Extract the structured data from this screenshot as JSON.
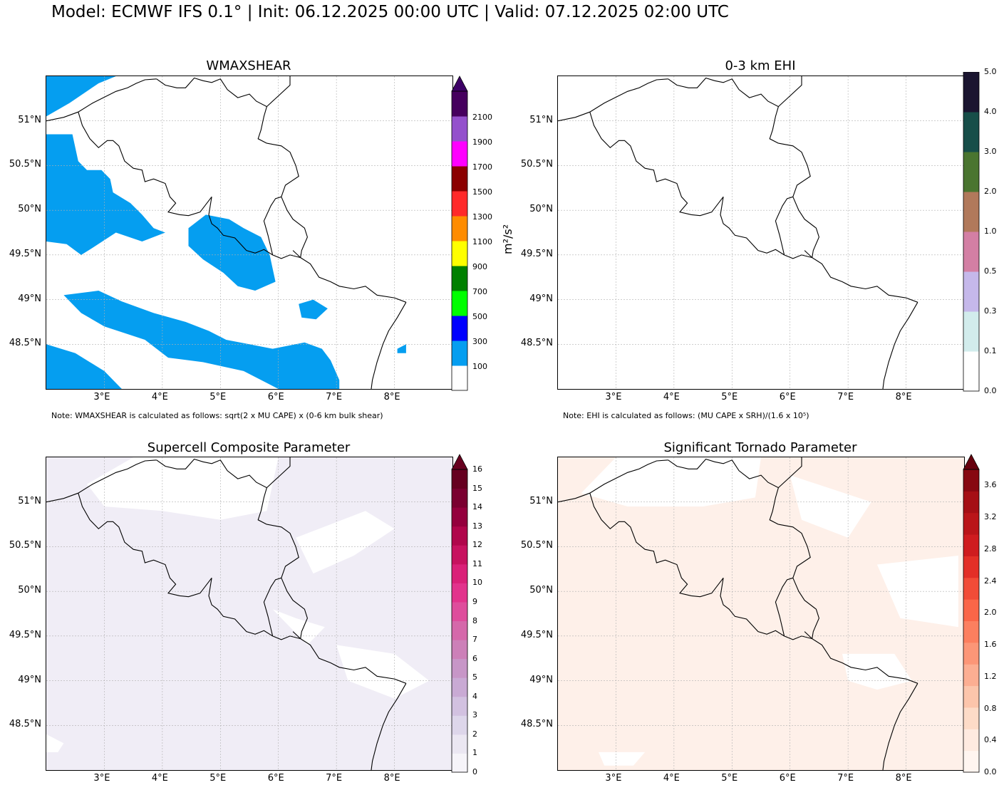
{
  "suptitle": "Model: ECMWF IFS 0.1° | Init: 06.12.2025 00:00 UTC | Valid: 07.12.2025 02:00 UTC",
  "map_extent": {
    "lon": [
      2.0,
      9.0
    ],
    "lat": [
      48.0,
      51.5
    ]
  },
  "lon_ticks": [
    "3°E",
    "4°E",
    "5°E",
    "6°E",
    "7°E",
    "8°E"
  ],
  "lat_ticks": [
    "51°N",
    "50.5°N",
    "50°N",
    "49.5°N",
    "49°N",
    "48.5°N"
  ],
  "colors": {
    "gridline": "#b0b0b0",
    "coastline": "#000000"
  },
  "panels": [
    {
      "title": "WMAXSHEAR",
      "note": "Note: WMAXSHEAR is calculated as follows: sqrt(2 x MU CAPE) x (0-6 km bulk shear)",
      "colorbar": {
        "label": "m²/s²",
        "extend": "max",
        "tick_labels": [
          "100",
          "300",
          "500",
          "700",
          "900",
          "1100",
          "1300",
          "1500",
          "1700",
          "1900",
          "2100"
        ],
        "colors": [
          "#ffffff",
          "#059ef0",
          "#0000ff",
          "#00ff00",
          "#008000",
          "#ffff00",
          "#ff8c00",
          "#ff2a2a",
          "#8b0000",
          "#ff00ff",
          "#9450cc",
          "#46005e",
          "#3d0066"
        ]
      },
      "field": {
        "fill": "#059ef0"
      }
    },
    {
      "title": "0-3 km EHI",
      "note": "Note: EHI is calculated as follows: (MU CAPE x SRH)/(1.6 x 10⁵)",
      "colorbar": {
        "label": "",
        "extend": "none",
        "tick_labels": [
          "0.0",
          "0.1",
          "0.3",
          "0.5",
          "1.0",
          "2.0",
          "3.0",
          "4.0",
          "5.0"
        ],
        "colors": [
          "#ffffff",
          "#d2ecec",
          "#c5b8ea",
          "#d37fa4",
          "#b1795b",
          "#4a7530",
          "#174e49",
          "#1b1530"
        ]
      },
      "field": {
        "fill": "none"
      }
    },
    {
      "title": "Supercell Composite Parameter",
      "note": "",
      "colorbar": {
        "label": "",
        "extend": "max",
        "tick_labels": [
          "0",
          "1",
          "2",
          "3",
          "4",
          "5",
          "6",
          "7",
          "8",
          "9",
          "10",
          "11",
          "12",
          "13",
          "14",
          "15",
          "16"
        ],
        "colors": [
          "#f6f4f9",
          "#ebe7f2",
          "#ddd6ea",
          "#d2c1e0",
          "#c9aad4",
          "#c796c7",
          "#cc80b8",
          "#d568aa",
          "#de4d9c",
          "#e2338c",
          "#da2178",
          "#c7125f",
          "#b0064b",
          "#94003d",
          "#7a0030",
          "#660020",
          "#67001f"
        ]
      },
      "field": {
        "fill": "#f0edf6"
      }
    },
    {
      "title": "Significant Tornado Parameter",
      "note": "",
      "colorbar": {
        "label": "",
        "extend": "max",
        "tick_labels": [
          "0.0",
          "0.4",
          "0.8",
          "1.2",
          "1.6",
          "2.0",
          "2.4",
          "2.8",
          "3.2",
          "3.6"
        ],
        "colors": [
          "#fff5f0",
          "#feeae0",
          "#fddbc7",
          "#fcc5ab",
          "#fcae92",
          "#fc9677",
          "#fc7f5f",
          "#fa6648",
          "#f14c37",
          "#e32f27",
          "#cf1c1f",
          "#ba1519",
          "#a50f15",
          "#870811",
          "#67000d"
        ]
      },
      "field": {
        "fill": "#fef0e9"
      }
    }
  ]
}
